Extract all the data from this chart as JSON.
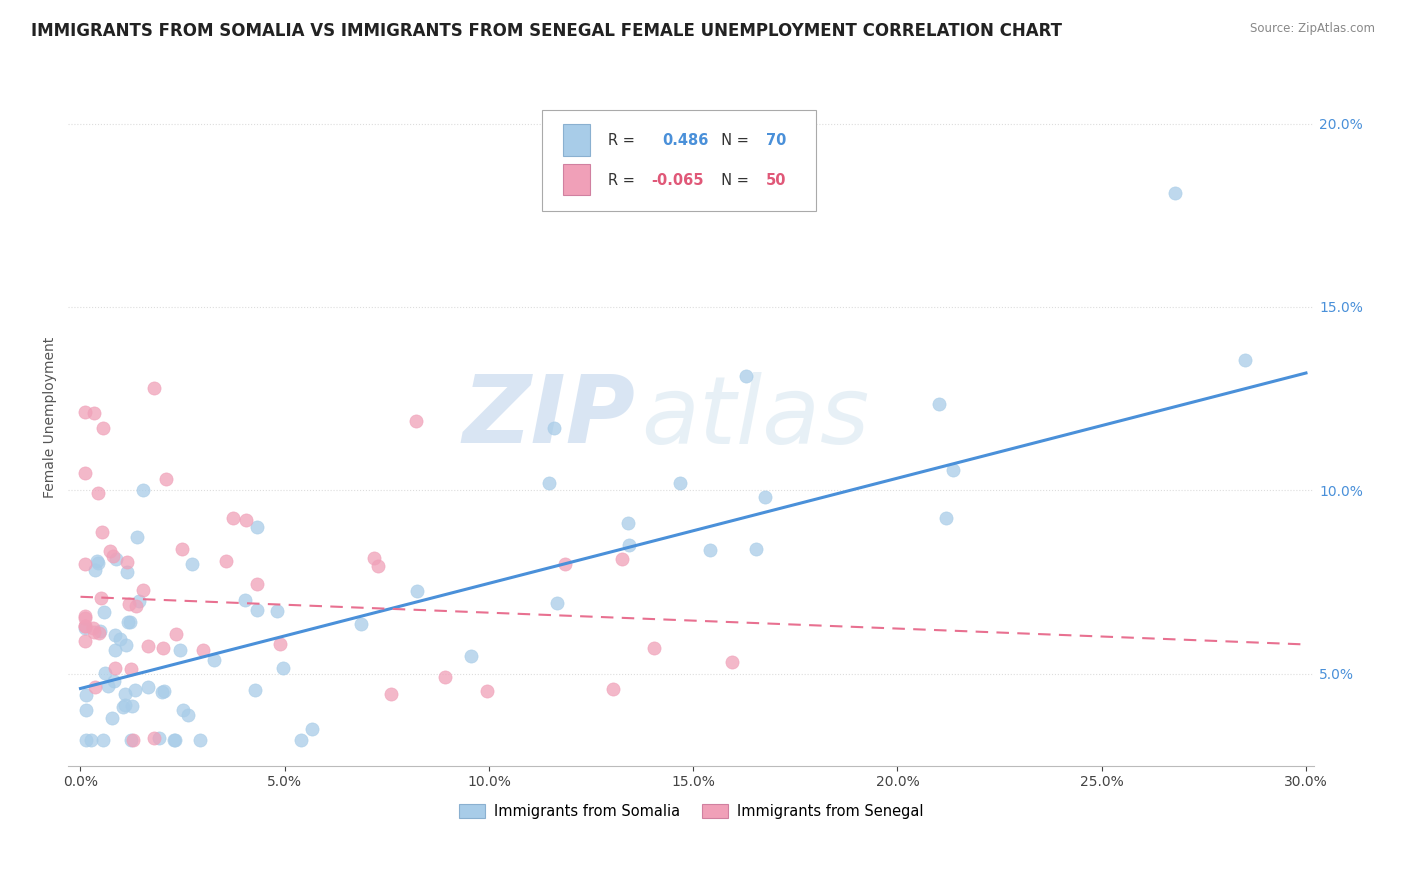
{
  "title": "IMMIGRANTS FROM SOMALIA VS IMMIGRANTS FROM SENEGAL FEMALE UNEMPLOYMENT CORRELATION CHART",
  "source": "Source: ZipAtlas.com",
  "ylabel": "Female Unemployment",
  "watermark_zip": "ZIP",
  "watermark_atlas": "atlas",
  "xlim": [
    -0.003,
    0.302
  ],
  "ylim": [
    0.025,
    0.215
  ],
  "xticks": [
    0.0,
    0.05,
    0.1,
    0.15,
    0.2,
    0.25,
    0.3
  ],
  "yticks_right": [
    0.05,
    0.1,
    0.15,
    0.2
  ],
  "somalia_color": "#a8cce8",
  "senegal_color": "#f0a0b8",
  "somalia_line_color": "#4a90d9",
  "senegal_line_color": "#e87090",
  "somalia_R": 0.486,
  "somalia_N": 70,
  "senegal_R": -0.065,
  "senegal_N": 50,
  "background_color": "#ffffff",
  "grid_color": "#dddddd",
  "title_fontsize": 12,
  "axis_label_fontsize": 10,
  "tick_fontsize": 10,
  "legend_box_color_somalia": "#a8cce8",
  "legend_box_color_senegal": "#f0a0b8",
  "somalia_line_start_y": 0.046,
  "somalia_line_end_y": 0.132,
  "senegal_line_start_y": 0.071,
  "senegal_line_end_y": 0.058
}
